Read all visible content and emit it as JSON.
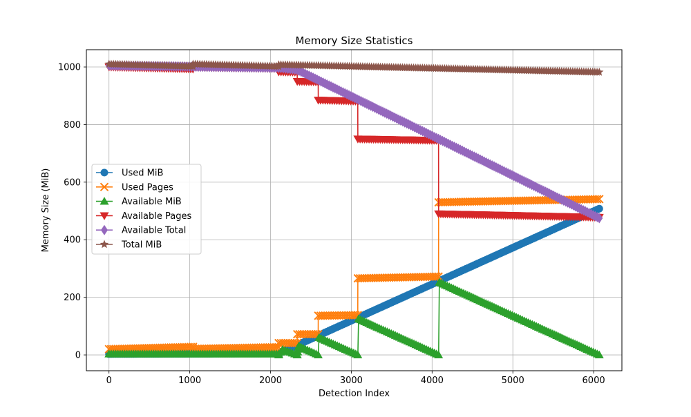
{
  "chart_data": {
    "type": "line",
    "title": "Memory Size Statistics",
    "xlabel": "Detection Index",
    "ylabel": "Memory Size (MiB)",
    "xlim": [
      -280,
      6350
    ],
    "ylim": [
      -55,
      1060
    ],
    "xticks": [
      0,
      1000,
      2000,
      3000,
      4000,
      5000,
      6000
    ],
    "yticks": [
      0,
      200,
      400,
      600,
      800,
      1000
    ],
    "xtick_labels": [
      "0",
      "1000",
      "2000",
      "3000",
      "4000",
      "5000",
      "6000"
    ],
    "ytick_labels": [
      "0",
      "200",
      "400",
      "600",
      "800",
      "1000"
    ],
    "grid": true,
    "legend_position": "center-left",
    "series": [
      {
        "name": "Used MiB",
        "color": "#1f77b4",
        "marker": "circle",
        "points": [
          [
            0,
            3
          ],
          [
            2100,
            5
          ],
          [
            2101,
            5
          ],
          [
            6070,
            508
          ]
        ]
      },
      {
        "name": "Used Pages",
        "color": "#ff7f0e",
        "marker": "x",
        "points": [
          [
            0,
            20
          ],
          [
            1040,
            28
          ],
          [
            1041,
            21
          ],
          [
            2100,
            27
          ],
          [
            2101,
            41
          ],
          [
            2330,
            41
          ],
          [
            2331,
            72
          ],
          [
            2590,
            72
          ],
          [
            2591,
            136
          ],
          [
            3080,
            138
          ],
          [
            3081,
            266
          ],
          [
            4080,
            272
          ],
          [
            4081,
            530
          ],
          [
            6070,
            541
          ]
        ]
      },
      {
        "name": "Available MiB",
        "color": "#2ca02c",
        "marker": "triangle-up",
        "points": [
          [
            0,
            3
          ],
          [
            2100,
            3
          ],
          [
            2101,
            0
          ],
          [
            2150,
            18
          ],
          [
            2330,
            0
          ],
          [
            2331,
            0
          ],
          [
            2350,
            30
          ],
          [
            2590,
            0
          ],
          [
            2591,
            0
          ],
          [
            2600,
            60
          ],
          [
            3080,
            0
          ],
          [
            3081,
            0
          ],
          [
            3090,
            125
          ],
          [
            4080,
            0
          ],
          [
            4081,
            0
          ],
          [
            4090,
            252
          ],
          [
            6070,
            0
          ]
        ]
      },
      {
        "name": "Available Pages",
        "color": "#d62728",
        "marker": "triangle-down",
        "points": [
          [
            0,
            1000
          ],
          [
            1040,
            993
          ],
          [
            1041,
            1001
          ],
          [
            2100,
            994
          ],
          [
            2101,
            983
          ],
          [
            2330,
            982
          ],
          [
            2331,
            950
          ],
          [
            2590,
            948
          ],
          [
            2591,
            885
          ],
          [
            3080,
            881
          ],
          [
            3081,
            750
          ],
          [
            4080,
            745
          ],
          [
            4081,
            490
          ],
          [
            6070,
            478
          ]
        ]
      },
      {
        "name": "Available Total",
        "color": "#9467bd",
        "marker": "diamond",
        "points": [
          [
            0,
            1005
          ],
          [
            2100,
            997
          ],
          [
            2330,
            990
          ],
          [
            4080,
            750
          ],
          [
            6070,
            475
          ]
        ]
      },
      {
        "name": "Total MiB",
        "color": "#8c564b",
        "marker": "star",
        "points": [
          [
            0,
            1010
          ],
          [
            1040,
            1002
          ],
          [
            1041,
            1010
          ],
          [
            2100,
            1002
          ],
          [
            2101,
            1008
          ],
          [
            6070,
            982
          ]
        ]
      }
    ]
  }
}
